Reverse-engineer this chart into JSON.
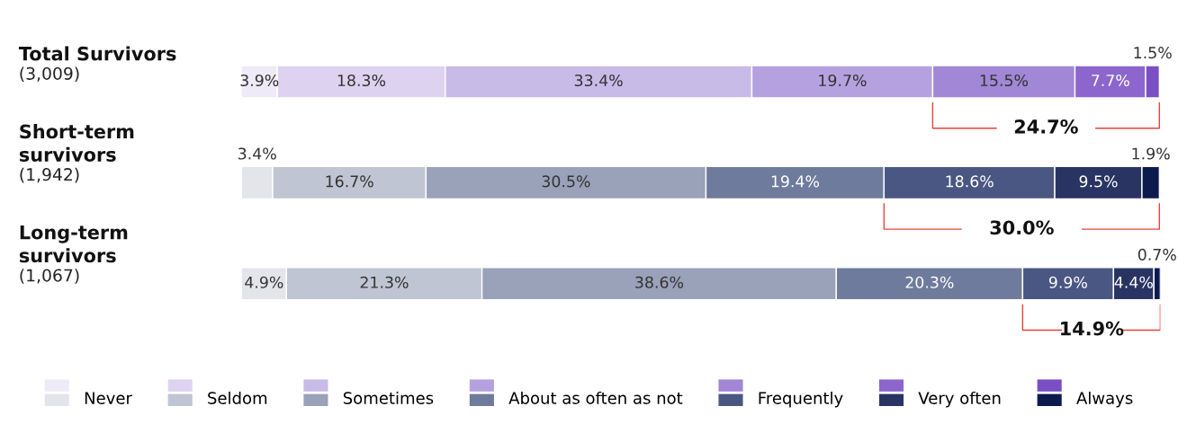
{
  "chart_data": {
    "type": "bar",
    "orientation": "horizontal",
    "stacked": true,
    "categories": [
      "Total Survivors\n(3,009)",
      "Short-term\nsurvivors\n(1,942)",
      "Long-term\nsurvivors\n(1,067)"
    ],
    "series": [
      {
        "name": "Never",
        "colors": [
          "#efeaf7",
          "#e4e5ea",
          "#e4e5ea"
        ],
        "values": [
          3.9,
          3.4,
          4.9
        ],
        "value_labels": [
          "3.9%",
          "3.4%",
          "4.9%"
        ]
      },
      {
        "name": "Seldom",
        "colors": [
          "#ddd3f0",
          "#c0c5d3",
          "#c0c5d3"
        ],
        "values": [
          18.3,
          16.7,
          21.3
        ],
        "value_labels": [
          "18.3%",
          "16.7%",
          "21.3%"
        ]
      },
      {
        "name": "Sometimes",
        "colors": [
          "#c9bbe8",
          "#9aa2ba",
          "#9aa2ba"
        ],
        "values": [
          33.4,
          30.5,
          38.6
        ],
        "value_labels": [
          "33.4%",
          "30.5%",
          "38.6%"
        ]
      },
      {
        "name": "About as often as not",
        "colors": [
          "#b6a1e0",
          "#6f7b9c",
          "#6f7b9c"
        ],
        "values": [
          19.7,
          19.4,
          20.3
        ],
        "value_labels": [
          "19.7%",
          "19.4%",
          "20.3%"
        ]
      },
      {
        "name": "Frequently",
        "colors": [
          "#a187d6",
          "#4a5782",
          "#4a5782"
        ],
        "values": [
          15.5,
          18.6,
          9.9
        ],
        "value_labels": [
          "15.5%",
          "18.6%",
          "9.9%"
        ]
      },
      {
        "name": "Very often",
        "colors": [
          "#8c66cc",
          "#2a3463",
          "#2a3463"
        ],
        "values": [
          7.7,
          9.5,
          4.4
        ],
        "value_labels": [
          "7.7%",
          "9.5%",
          "4.4%"
        ]
      },
      {
        "name": "Always",
        "colors": [
          "#7a4fc4",
          "#0d1a4d",
          "#0d1a4d"
        ],
        "values": [
          1.5,
          1.9,
          0.7
        ],
        "value_labels": [
          "1.5%",
          "1.9%",
          "0.7%"
        ]
      }
    ],
    "annotations": [
      "24.7%",
      "30.0%",
      "14.9%"
    ],
    "legend": "bottom"
  }
}
